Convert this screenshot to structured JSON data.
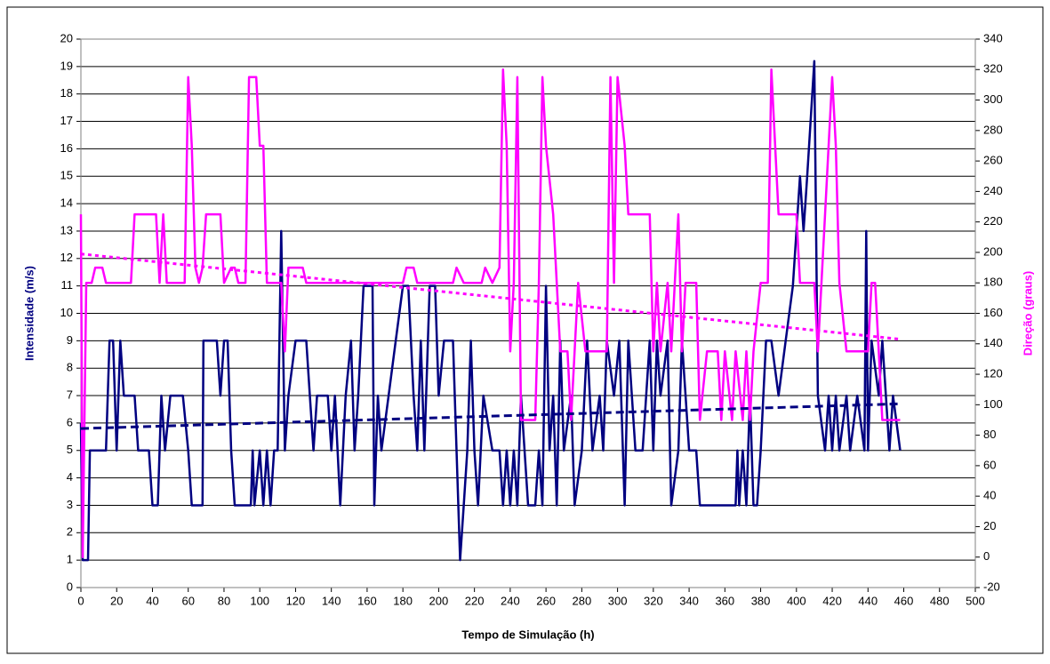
{
  "chart_data": {
    "type": "line",
    "xlabel": "Tempo de Simulação (h)",
    "ylabel": "Intensidade (m/s)",
    "y2label": "Direção (graus)",
    "ylabel_color": "#000080",
    "y2label_color": "#ff00ff",
    "xlim": [
      0,
      500
    ],
    "xticks": [
      0,
      20,
      40,
      60,
      80,
      100,
      120,
      140,
      160,
      180,
      200,
      220,
      240,
      260,
      280,
      300,
      320,
      340,
      360,
      380,
      400,
      420,
      440,
      460,
      480,
      500
    ],
    "ylim": [
      0,
      20
    ],
    "yticks": [
      0,
      1,
      2,
      3,
      4,
      5,
      6,
      7,
      8,
      9,
      10,
      11,
      12,
      13,
      14,
      15,
      16,
      17,
      18,
      19,
      20
    ],
    "y2lim": [
      -20,
      340
    ],
    "y2ticks": [
      -20,
      0,
      20,
      40,
      60,
      80,
      100,
      120,
      140,
      160,
      180,
      200,
      220,
      240,
      260,
      280,
      300,
      320,
      340
    ],
    "grid": true,
    "series": [
      {
        "color": "#000080",
        "axis": "y",
        "dash": "solid",
        "x": [
          0,
          1,
          4,
          5,
          14,
          16,
          18,
          20,
          22,
          24,
          30,
          32,
          38,
          40,
          43,
          45,
          47,
          50,
          57,
          60,
          62,
          68,
          68.5,
          76,
          78,
          80,
          82,
          84,
          86,
          95,
          96,
          97,
          100,
          102,
          104,
          106,
          108,
          110,
          112,
          114,
          116,
          120,
          126,
          128,
          130,
          132,
          138,
          140,
          142,
          145,
          148,
          151,
          153,
          155,
          158,
          163,
          164,
          166,
          168,
          172,
          176,
          180,
          183,
          186,
          188,
          190,
          192,
          195,
          198,
          200,
          203,
          208,
          210,
          212,
          214,
          216,
          218,
          220,
          222,
          225,
          230,
          234,
          236,
          238,
          240,
          242,
          244,
          246,
          248,
          250,
          254,
          256,
          258,
          260,
          262,
          264,
          266,
          268,
          270,
          274,
          276,
          280,
          283,
          286,
          290,
          292,
          294,
          298,
          301,
          304,
          306,
          310,
          314,
          318,
          320,
          322,
          324,
          328,
          330,
          334,
          336,
          338,
          340,
          344,
          346,
          366,
          367,
          368,
          370,
          372,
          374,
          376,
          378,
          380,
          383,
          386,
          390,
          394,
          398,
          402,
          404,
          406,
          410,
          412,
          416,
          418,
          420,
          422,
          424,
          428,
          430,
          434,
          438,
          439,
          440,
          442,
          446,
          448,
          452,
          454,
          458
        ],
        "values": [
          6,
          1,
          1,
          5,
          5,
          9,
          9,
          5,
          9,
          7,
          7,
          5,
          5,
          3,
          3,
          7,
          5,
          7,
          7,
          5,
          3,
          3,
          9,
          9,
          7,
          9,
          9,
          5,
          3,
          3,
          5,
          3,
          5,
          3,
          5,
          3,
          5,
          5,
          13,
          5,
          7,
          9,
          9,
          7,
          5,
          7,
          7,
          5,
          7,
          3,
          7,
          9,
          5,
          7,
          11,
          11,
          3,
          7,
          5,
          7,
          9,
          11,
          11,
          7,
          5,
          9,
          5,
          11,
          11,
          7,
          9,
          9,
          5,
          1,
          3,
          5,
          9,
          5,
          3,
          7,
          5,
          5,
          3,
          5,
          3,
          5,
          3,
          7,
          5,
          3,
          3,
          5,
          3,
          11,
          5,
          7,
          3,
          9,
          5,
          7,
          3,
          5,
          9,
          5,
          7,
          5,
          9,
          7,
          9,
          3,
          9,
          5,
          5,
          9,
          5,
          9,
          7,
          9,
          3,
          5,
          9,
          7,
          5,
          5,
          3,
          3,
          5,
          3,
          5,
          3,
          7,
          3,
          3,
          5,
          9,
          9,
          7,
          9,
          11,
          15,
          13,
          15,
          19.2,
          7,
          5,
          7,
          5,
          7,
          5,
          7,
          5,
          7,
          5,
          13,
          5,
          9,
          7,
          9,
          5,
          7,
          5
        ]
      },
      {
        "color": "#ff00ff",
        "axis": "y2",
        "dash": "solid",
        "x": [
          0,
          1,
          3,
          6,
          8,
          12,
          14,
          28,
          30,
          42,
          44,
          46,
          48,
          58,
          60,
          62,
          64,
          66,
          68,
          70,
          78,
          80,
          84,
          86,
          88,
          92,
          94,
          98,
          100,
          102,
          104,
          112,
          114,
          116,
          124,
          126,
          180,
          182,
          186,
          188,
          208,
          210,
          214,
          224,
          226,
          230,
          234,
          236,
          238,
          240,
          242,
          244,
          246,
          254,
          256,
          258,
          260,
          264,
          268,
          272,
          274,
          278,
          282,
          294,
          296,
          298,
          300,
          304,
          306,
          318,
          320,
          322,
          324,
          328,
          330,
          334,
          336,
          338,
          344,
          346,
          350,
          356,
          358,
          360,
          364,
          366,
          370,
          372,
          374,
          376,
          380,
          384,
          386,
          390,
          400,
          402,
          410,
          412,
          416,
          420,
          422,
          424,
          428,
          440,
          442,
          444,
          446,
          448,
          458
        ],
        "values": [
          225,
          0,
          180,
          180,
          190,
          190,
          180,
          180,
          225,
          225,
          180,
          225,
          180,
          180,
          315,
          270,
          190,
          180,
          190,
          225,
          225,
          180,
          190,
          190,
          180,
          180,
          315,
          315,
          270,
          270,
          180,
          180,
          135,
          190,
          190,
          180,
          180,
          190,
          190,
          180,
          180,
          190,
          180,
          180,
          190,
          180,
          190,
          320,
          270,
          135,
          180,
          315,
          90,
          90,
          180,
          315,
          270,
          225,
          135,
          135,
          90,
          180,
          135,
          135,
          315,
          180,
          315,
          270,
          225,
          225,
          135,
          180,
          135,
          180,
          135,
          225,
          135,
          180,
          180,
          90,
          135,
          135,
          90,
          135,
          90,
          135,
          90,
          135,
          90,
          135,
          180,
          180,
          320,
          225,
          225,
          180,
          180,
          135,
          225,
          315,
          270,
          180,
          135,
          135,
          180,
          180,
          135,
          90,
          90
        ]
      },
      {
        "color": "#000080",
        "axis": "y",
        "dash": "dashed",
        "x": [
          0,
          458
        ],
        "values": [
          5.8,
          6.7
        ]
      },
      {
        "color": "#ff00ff",
        "axis": "y2",
        "dash": "dotted",
        "x": [
          0,
          458
        ],
        "values": [
          199,
          143
        ]
      }
    ]
  }
}
